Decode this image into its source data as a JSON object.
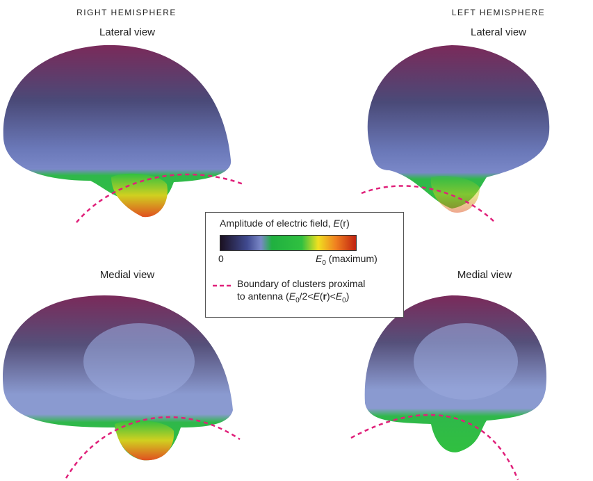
{
  "panels": {
    "right": {
      "heading": "RIGHT HEMISPHERE",
      "lateral": "Lateral view",
      "medial": "Medial view"
    },
    "left": {
      "heading": "LEFT HEMISPHERE",
      "lateral": "Lateral view",
      "medial": "Medial view"
    }
  },
  "legend": {
    "title": [
      "Amplitude of electric field, ",
      "E",
      "(r)"
    ],
    "min_label": "0",
    "max_label": [
      "E",
      "0",
      " (maximum)"
    ],
    "boundary_line1": "Boundary of clusters proximal",
    "boundary_line2": [
      "to antenna (",
      "E",
      "0",
      "/2<",
      "E",
      "(",
      "r",
      ")<",
      "E",
      "0",
      ")"
    ]
  }
}
